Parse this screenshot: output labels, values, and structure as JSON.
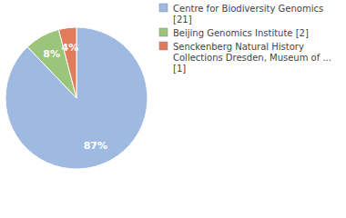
{
  "chart_data": {
    "type": "pie",
    "categories": [
      "Centre for Biodiversity Genomics [21]",
      "Beijing Genomics Institute [2]",
      "Senckenberg Natural History Collections Dresden, Museum of ... [1]"
    ],
    "values": [
      87,
      8,
      4
    ],
    "value_labels": [
      "87%",
      "8%",
      "4%"
    ],
    "colors": [
      "#9fbae0",
      "#9ac57a",
      "#e07c5c"
    ],
    "data_labels": true,
    "legend": "right"
  }
}
